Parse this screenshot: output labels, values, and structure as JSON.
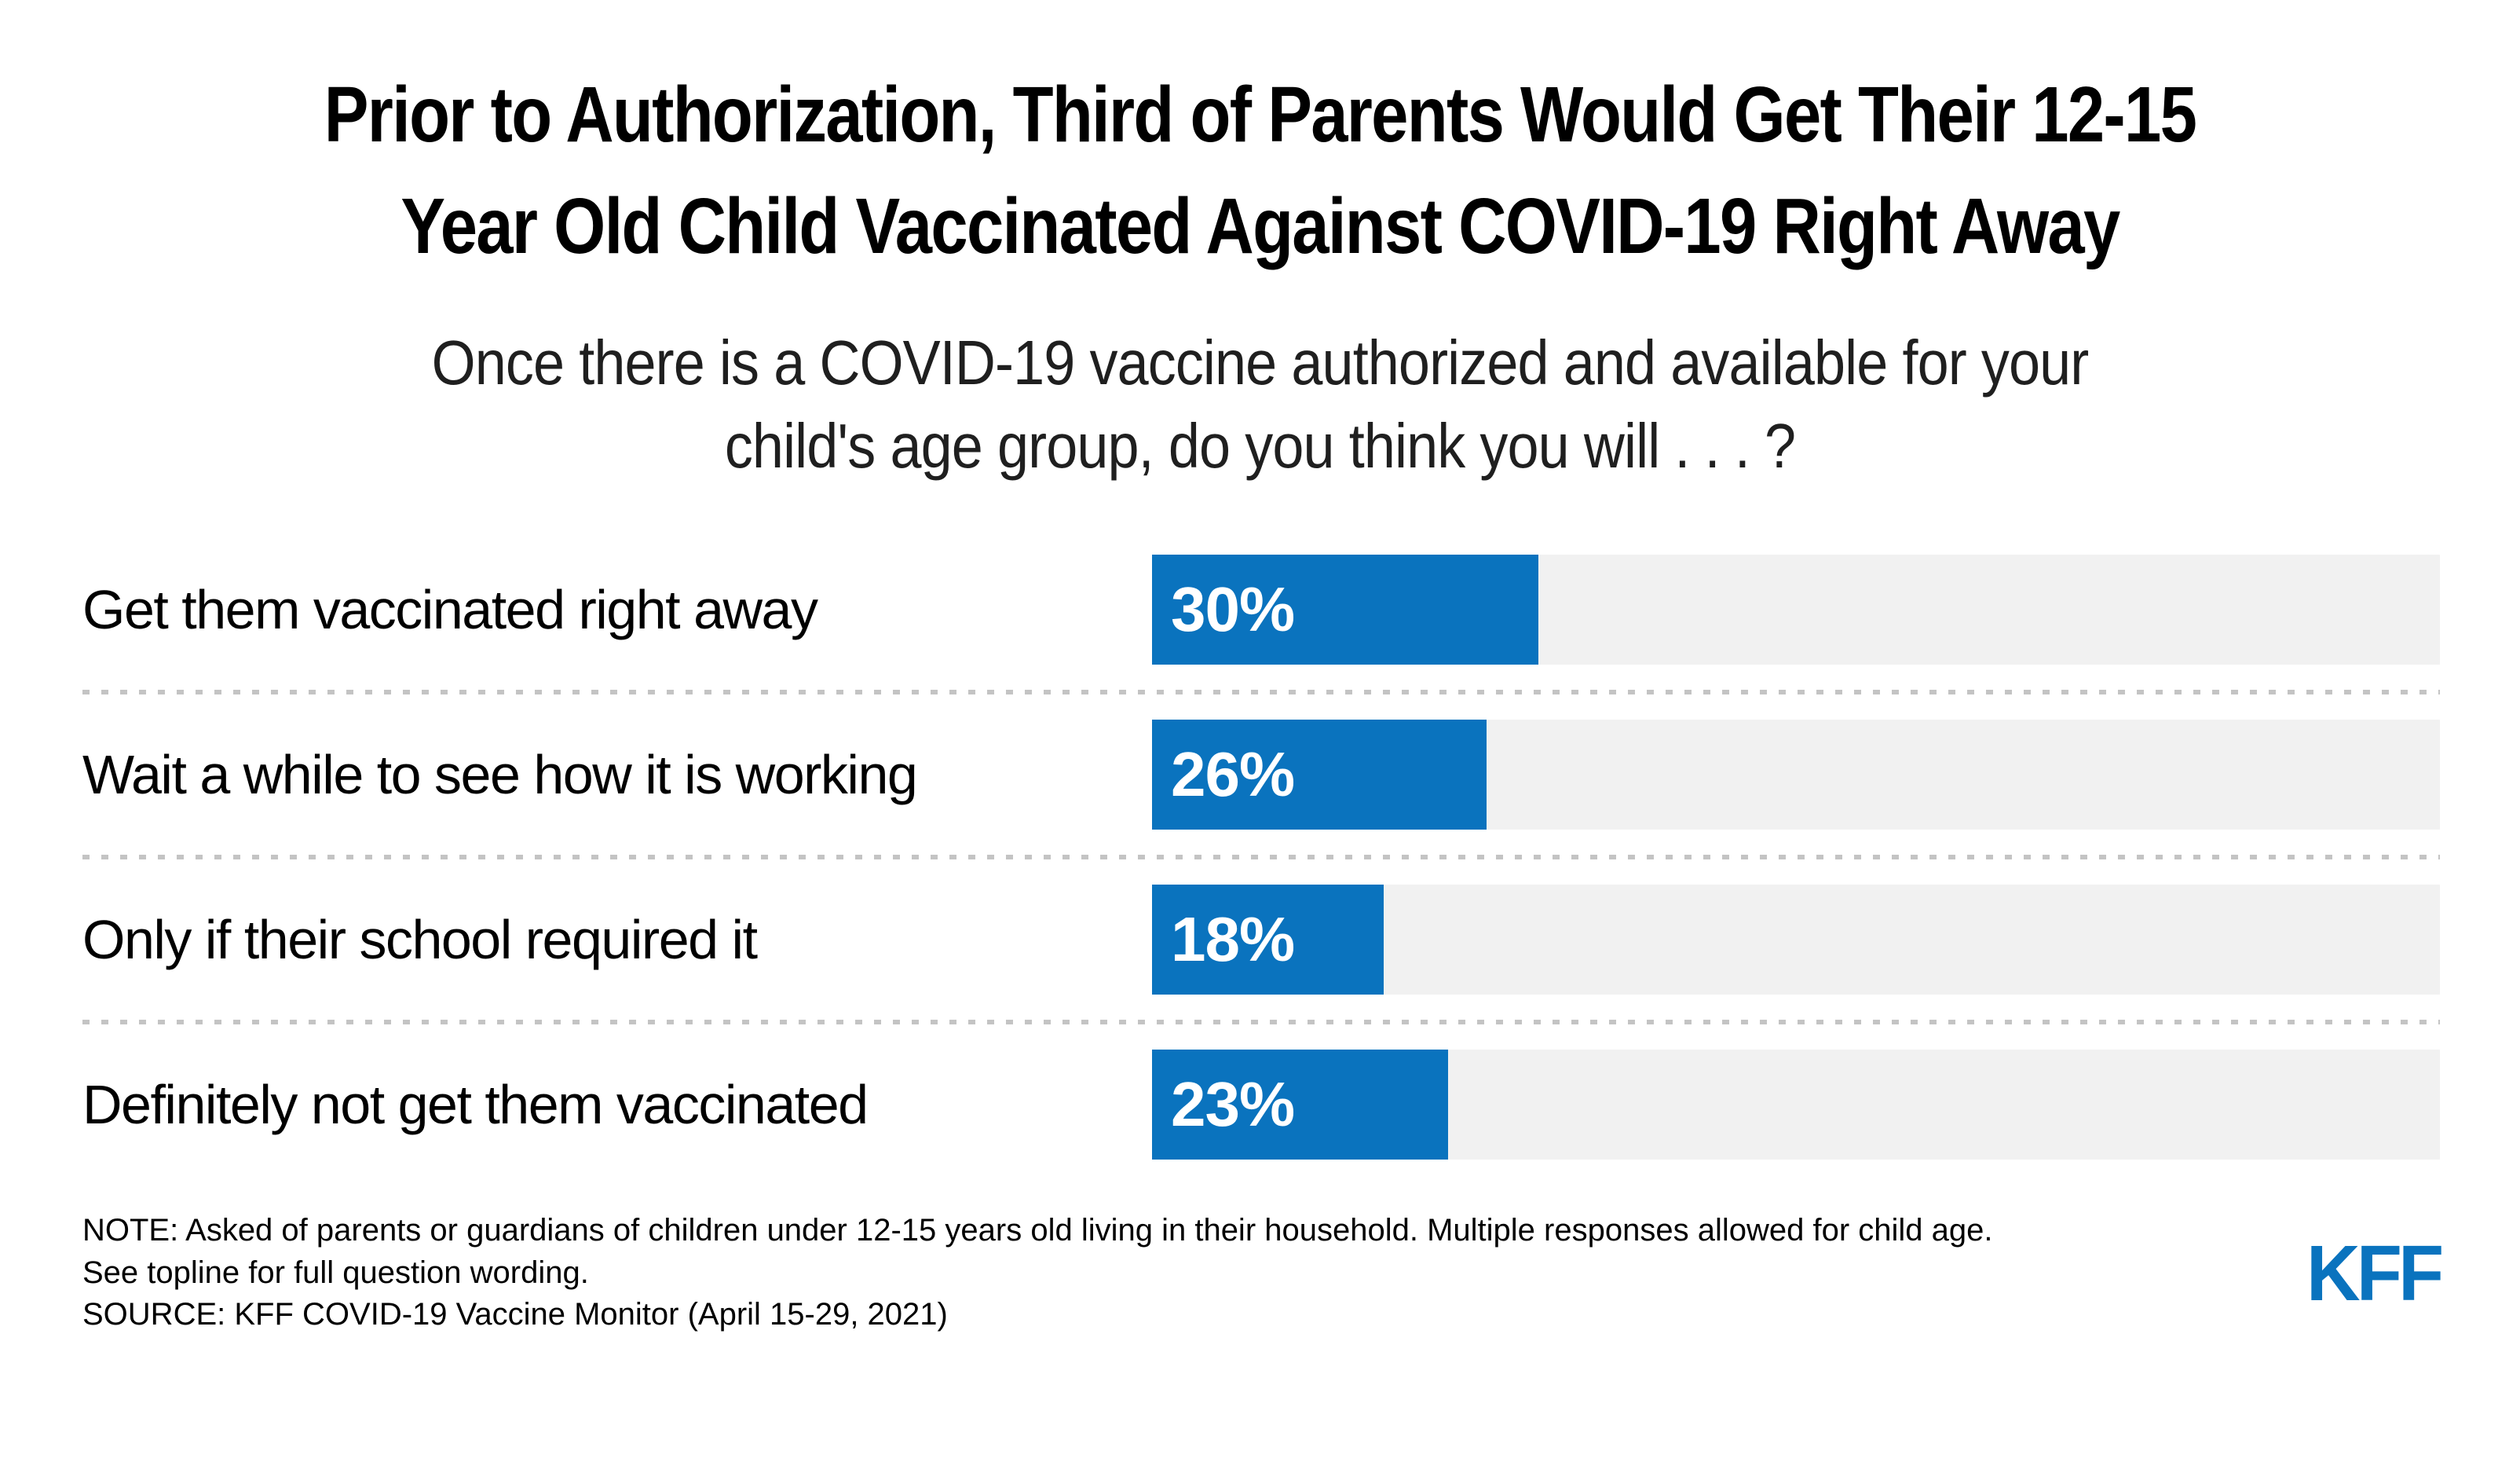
{
  "header": {
    "title_lines": [
      "Prior to Authorization, Third of Parents Would Get Their 12-15",
      "Year Old Child Vaccinated Against COVID-19 Right Away"
    ],
    "subtitle_lines": [
      "Once there is a COVID-19 vaccine authorized and available for your",
      "child's age group, do you think you will . . . ?"
    ]
  },
  "chart_data": {
    "type": "bar",
    "orientation": "horizontal",
    "title": "Prior to Authorization, Third of Parents Would Get Their 12-15 Year Old Child Vaccinated Against COVID-19 Right Away",
    "subtitle": "Once there is a COVID-19 vaccine authorized and available for your child's age group, do you think you will . . . ?",
    "categories": [
      "Get them vaccinated right away",
      "Wait a while to see how it is working",
      "Only if their school required it",
      "Definitely not get them vaccinated"
    ],
    "values": [
      30,
      26,
      18,
      23
    ],
    "value_labels": [
      "30%",
      "26%",
      "18%",
      "23%"
    ],
    "xlim": [
      0,
      100
    ],
    "bar_color": "#0a73be",
    "track_color": "#f1f1f1",
    "separator_style": "dotted",
    "grid": false,
    "legend": "none"
  },
  "footer": {
    "note_lines": [
      "NOTE: Asked of parents or guardians of children under 12-15 years old living in their household. Multiple responses allowed for child age.",
      "See topline for full question wording.",
      "SOURCE: KFF COVID-19 Vaccine Monitor (April 15-29, 2021)"
    ],
    "logo_text": "KFF"
  },
  "colors": {
    "accent_blue": "#0a73be",
    "bar_track_gray": "#f1f1f1",
    "separator_gray": "#c4c4c4",
    "text_black": "#000000"
  }
}
